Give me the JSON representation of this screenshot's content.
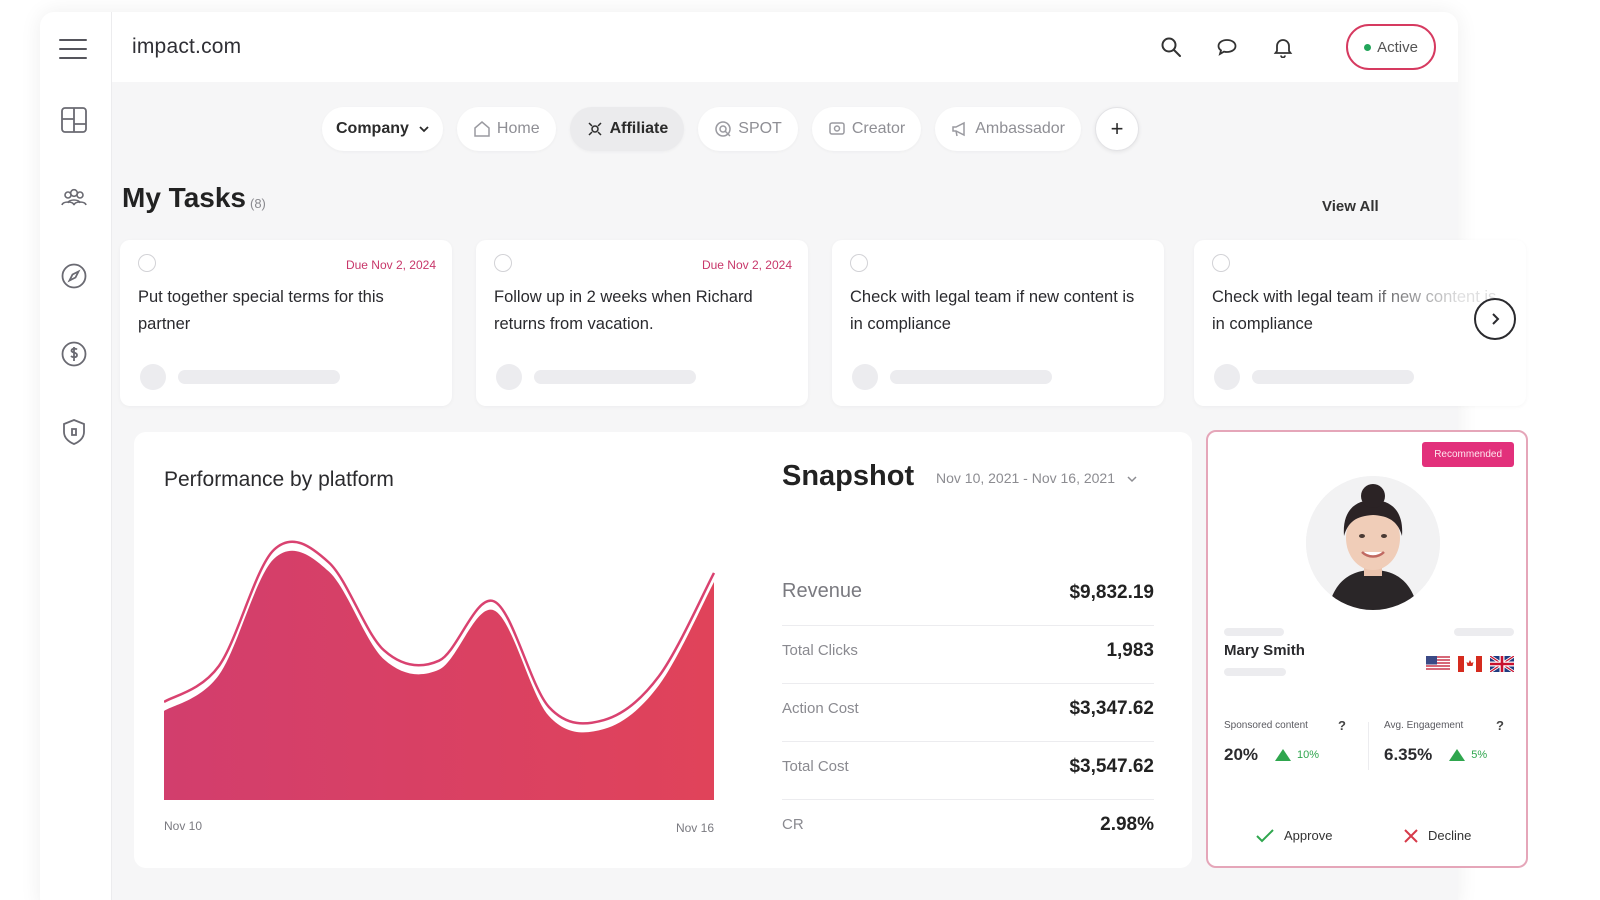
{
  "app": {
    "brand": "impact.com"
  },
  "sidebar": {
    "icons": [
      "menu-icon",
      "dashboard-icon",
      "users-icon",
      "compass-icon",
      "dollar-icon",
      "shield-icon"
    ]
  },
  "header": {
    "status_label": "Active",
    "icons": [
      "search-icon",
      "chat-icon",
      "bell-icon"
    ]
  },
  "tabs": {
    "company": "Company",
    "items": [
      {
        "label": "Home",
        "icon": "home-icon"
      },
      {
        "label": "Affiliate",
        "icon": "affiliate-icon",
        "selected": true
      },
      {
        "label": "SPOT",
        "icon": "spot-icon"
      },
      {
        "label": "Creator",
        "icon": "creator-icon"
      },
      {
        "label": "Ambassador",
        "icon": "megaphone-icon"
      }
    ],
    "add_label": "+"
  },
  "tasks": {
    "title": "My Tasks",
    "count": "(8)",
    "view_all": "View All",
    "items": [
      {
        "text": "Put together special terms for this partner",
        "due": "Due Nov 2, 2024"
      },
      {
        "text": "Follow up in 2 weeks when Richard returns from vacation.",
        "due": "Due Nov 2, 2024"
      },
      {
        "text": "Check with legal team if new content is in compliance",
        "due": ""
      },
      {
        "text": "Check with legal team if new content is in compliance",
        "due": ""
      }
    ]
  },
  "performance": {
    "title": "Performance by platform",
    "x_start": "Nov 10",
    "x_end": "Nov 16"
  },
  "chart_data": {
    "type": "area",
    "title": "Performance by platform",
    "x": [
      "Nov 10",
      "",
      "",
      "",
      "",
      "",
      "",
      "",
      "",
      "",
      "Nov 16"
    ],
    "series": [
      {
        "values": [
          0.38,
          0.52,
          0.97,
          0.92,
          0.58,
          0.54,
          0.77,
          0.36,
          0.31,
          0.48,
          0.88
        ]
      }
    ],
    "xlabel": "",
    "ylabel": "",
    "ylim": [
      0,
      1
    ],
    "grid": false,
    "colors": [
      "#d6406e",
      "#c7305c"
    ]
  },
  "snapshot": {
    "title": "Snapshot",
    "date_range": "Nov 10, 2021 - Nov 16, 2021",
    "metrics": [
      {
        "label": "Revenue",
        "value": "$9,832.19"
      },
      {
        "label": "Total Clicks",
        "value": "1,983"
      },
      {
        "label": "Action Cost",
        "value": "$3,347.62"
      },
      {
        "label": "Total Cost",
        "value": "$3,547.62"
      },
      {
        "label": "CR",
        "value": "2.98%"
      }
    ]
  },
  "creator": {
    "badge": "Recommended",
    "name": "Mary Smith",
    "flags": [
      "us-flag-icon",
      "ca-flag-icon",
      "uk-flag-icon"
    ],
    "stats": [
      {
        "label": "Sponsored content",
        "value": "20%",
        "change": "10%",
        "help": "?"
      },
      {
        "label": "Avg. Engagement",
        "value": "6.35%",
        "change": "5%",
        "help": "?"
      }
    ],
    "approve_label": "Approve",
    "decline_label": "Decline"
  }
}
